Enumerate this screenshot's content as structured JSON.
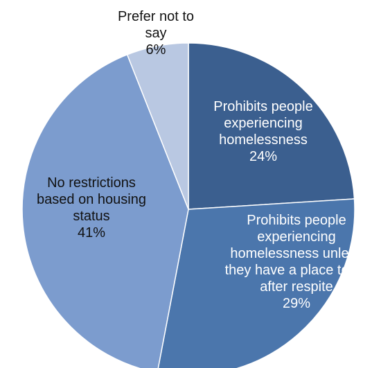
{
  "chart_data": {
    "type": "pie",
    "title": "",
    "start_angle_deg": 0,
    "direction": "clockwise",
    "slices": [
      {
        "label_lines": [
          "Prohibits people",
          "experiencing",
          "homelessness"
        ],
        "value": 24,
        "value_label": "24%",
        "color": "#3b5f8f",
        "text_color": "#ffffff"
      },
      {
        "label_lines": [
          "Prohibits people",
          "experiencing",
          "homelessness unless",
          "they have a place to go",
          "after respite"
        ],
        "value": 29,
        "value_label": "29%",
        "color": "#4b76ac",
        "text_color": "#ffffff"
      },
      {
        "label_lines": [
          "No restrictions",
          "based on housing",
          "status"
        ],
        "value": 41,
        "value_label": "41%",
        "color": "#7c9cce",
        "text_color": "#111111"
      },
      {
        "label_lines": [
          "Prefer not to",
          "say"
        ],
        "value": 6,
        "value_label": "6%",
        "color": "#b9c8e2",
        "text_color": "#111111"
      }
    ]
  }
}
